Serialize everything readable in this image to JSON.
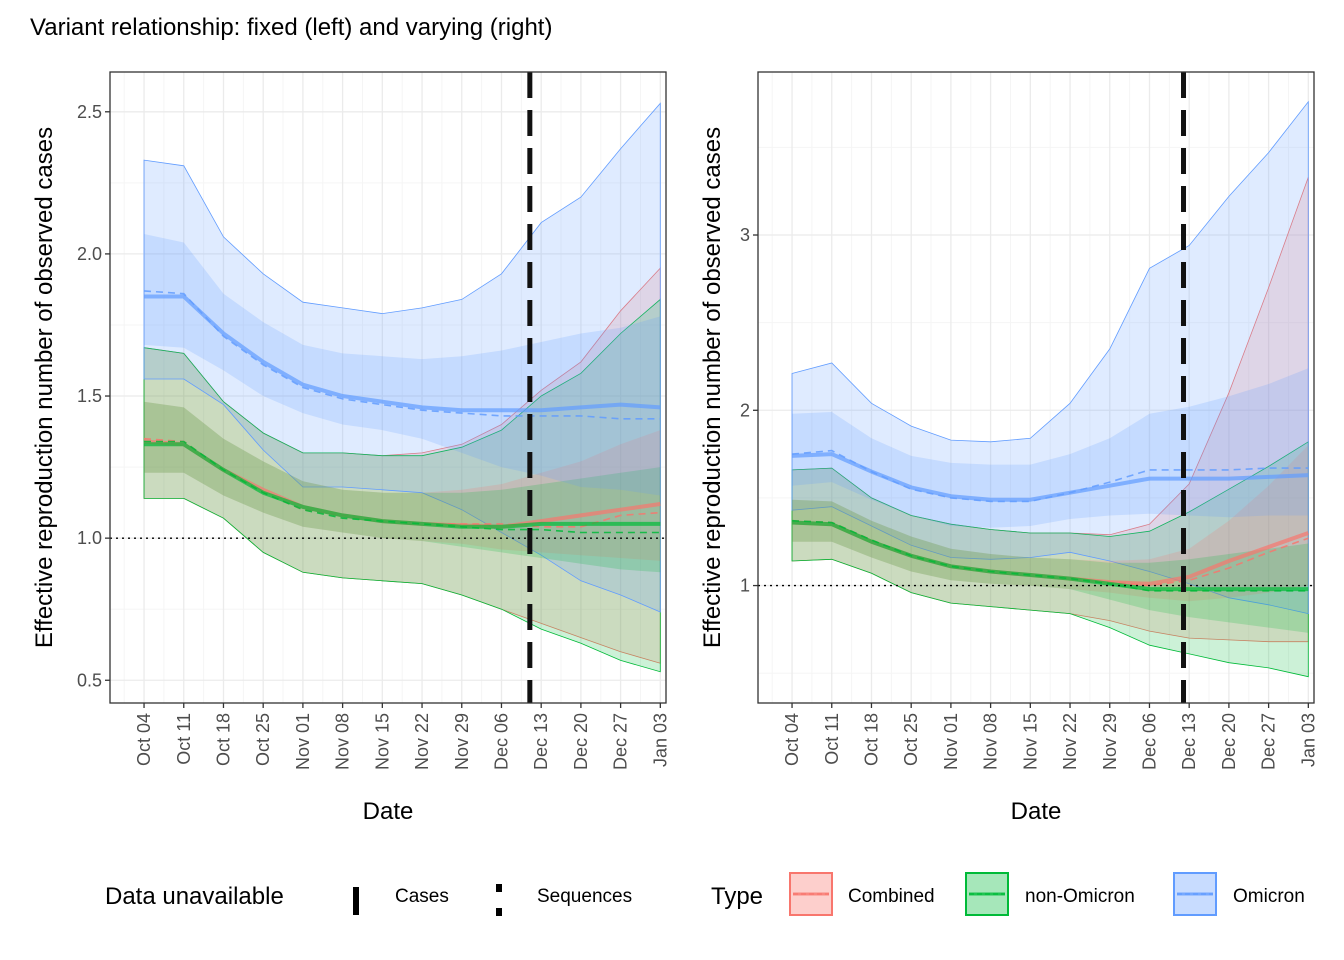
{
  "title": "Variant relationship: fixed (left) and varying (right)",
  "colors": {
    "combined": "#F8766D",
    "non_omicron": "#00BA38",
    "omicron": "#619CFF",
    "reference_line": "#000000",
    "grid_major": "#EBEBEB",
    "grid_minor": "#F5F5F5",
    "panel_border": "#333333"
  },
  "legend": {
    "unavailable_title": "Data unavailable",
    "unavailable_items": [
      "Cases",
      "Sequences"
    ],
    "type_title": "Type",
    "type_items": [
      "Combined",
      "non-Omicron",
      "Omicron"
    ]
  },
  "chart_data": [
    {
      "type": "line",
      "panel": "left",
      "xlabel": "Date",
      "ylabel": "Effective reproduction number of observed cases",
      "x_tick_labels": [
        "Oct 04",
        "Oct 11",
        "Oct 18",
        "Oct 25",
        "Nov 01",
        "Nov 08",
        "Nov 15",
        "Nov 22",
        "Nov 29",
        "Dec 06",
        "Dec 13",
        "Dec 20",
        "Dec 27",
        "Jan 03"
      ],
      "x_tick_dates": [
        "2021-10-04",
        "2021-10-11",
        "2021-10-18",
        "2021-10-25",
        "2021-11-01",
        "2021-11-08",
        "2021-11-15",
        "2021-11-22",
        "2021-11-29",
        "2021-12-06",
        "2021-12-13",
        "2021-12-20",
        "2021-12-27",
        "2022-01-03"
      ],
      "xlim": [
        "2021-09-28",
        "2022-01-04"
      ],
      "ylim": [
        0.42,
        2.64
      ],
      "y_ticks": [
        0.5,
        1.0,
        1.5,
        2.0,
        2.5
      ],
      "y_tick_labels": [
        "0.5",
        "1.0",
        "1.5",
        "2.0",
        "2.5"
      ],
      "reference_line_y": 1.0,
      "cases_unavailable_date": "2021-12-11",
      "grid": true,
      "dates": [
        "2021-10-04",
        "2021-10-11",
        "2021-10-18",
        "2021-10-25",
        "2021-11-01",
        "2021-11-08",
        "2021-11-15",
        "2021-11-22",
        "2021-11-29",
        "2021-12-06",
        "2021-12-13",
        "2021-12-20",
        "2021-12-27",
        "2022-01-03"
      ],
      "series": [
        {
          "name": "Combined",
          "median": [
            1.34,
            1.33,
            1.24,
            1.17,
            1.11,
            1.08,
            1.06,
            1.05,
            1.045,
            1.04,
            1.06,
            1.08,
            1.1,
            1.12
          ],
          "dashed": [
            1.35,
            1.34,
            1.24,
            1.16,
            1.1,
            1.08,
            1.06,
            1.05,
            1.05,
            1.05,
            1.04,
            1.04,
            1.08,
            1.09
          ],
          "lo90": [
            1.14,
            1.14,
            1.07,
            0.95,
            0.88,
            0.86,
            0.85,
            0.84,
            0.8,
            0.75,
            0.7,
            0.65,
            0.6,
            0.56
          ],
          "hi90": [
            1.67,
            1.65,
            1.48,
            1.37,
            1.3,
            1.3,
            1.29,
            1.3,
            1.33,
            1.4,
            1.52,
            1.62,
            1.8,
            1.95
          ],
          "lo50": [
            1.23,
            1.23,
            1.15,
            1.09,
            1.04,
            1.02,
            1.0,
            0.99,
            0.98,
            0.96,
            0.95,
            0.94,
            0.93,
            0.92
          ],
          "hi50": [
            1.48,
            1.46,
            1.35,
            1.27,
            1.2,
            1.17,
            1.16,
            1.16,
            1.17,
            1.19,
            1.23,
            1.27,
            1.33,
            1.38
          ]
        },
        {
          "name": "non-Omicron",
          "median": [
            1.33,
            1.33,
            1.24,
            1.16,
            1.11,
            1.08,
            1.06,
            1.05,
            1.04,
            1.04,
            1.05,
            1.05,
            1.05,
            1.05
          ],
          "dashed": [
            1.34,
            1.34,
            1.24,
            1.16,
            1.1,
            1.07,
            1.06,
            1.05,
            1.04,
            1.03,
            1.03,
            1.02,
            1.02,
            1.02
          ],
          "lo90": [
            1.14,
            1.14,
            1.07,
            0.95,
            0.88,
            0.86,
            0.85,
            0.84,
            0.8,
            0.75,
            0.68,
            0.63,
            0.57,
            0.53
          ],
          "hi90": [
            1.67,
            1.65,
            1.48,
            1.37,
            1.3,
            1.3,
            1.29,
            1.29,
            1.32,
            1.38,
            1.5,
            1.58,
            1.72,
            1.84
          ],
          "lo50": [
            1.23,
            1.23,
            1.15,
            1.09,
            1.04,
            1.02,
            1.0,
            0.99,
            0.97,
            0.95,
            0.93,
            0.91,
            0.89,
            0.88
          ],
          "hi50": [
            1.48,
            1.46,
            1.35,
            1.27,
            1.2,
            1.17,
            1.16,
            1.16,
            1.16,
            1.17,
            1.19,
            1.21,
            1.23,
            1.25
          ]
        },
        {
          "name": "Omicron",
          "median": [
            1.85,
            1.85,
            1.72,
            1.62,
            1.54,
            1.5,
            1.48,
            1.46,
            1.45,
            1.45,
            1.45,
            1.46,
            1.47,
            1.46
          ],
          "dashed": [
            1.87,
            1.86,
            1.71,
            1.61,
            1.53,
            1.49,
            1.47,
            1.45,
            1.44,
            1.43,
            1.43,
            1.43,
            1.42,
            1.42
          ],
          "lo90": [
            1.56,
            1.56,
            1.47,
            1.31,
            1.18,
            1.18,
            1.17,
            1.16,
            1.1,
            1.02,
            0.94,
            0.85,
            0.8,
            0.74
          ],
          "hi90": [
            2.33,
            2.31,
            2.06,
            1.93,
            1.83,
            1.81,
            1.79,
            1.81,
            1.84,
            1.93,
            2.11,
            2.2,
            2.37,
            2.53
          ],
          "lo50": [
            1.68,
            1.67,
            1.59,
            1.5,
            1.44,
            1.4,
            1.38,
            1.35,
            1.3,
            1.25,
            1.22,
            1.18,
            1.17,
            1.15
          ],
          "hi50": [
            2.07,
            2.04,
            1.86,
            1.76,
            1.68,
            1.65,
            1.64,
            1.63,
            1.64,
            1.66,
            1.69,
            1.72,
            1.74,
            1.78
          ]
        }
      ]
    },
    {
      "type": "line",
      "panel": "right",
      "xlabel": "Date",
      "ylabel": "Effective reproduction number of observed cases",
      "x_tick_labels": [
        "Oct 04",
        "Oct 11",
        "Oct 18",
        "Oct 25",
        "Nov 01",
        "Nov 08",
        "Nov 15",
        "Nov 22",
        "Nov 29",
        "Dec 06",
        "Dec 13",
        "Dec 20",
        "Dec 27",
        "Jan 03"
      ],
      "x_tick_dates": [
        "2021-10-04",
        "2021-10-11",
        "2021-10-18",
        "2021-10-25",
        "2021-11-01",
        "2021-11-08",
        "2021-11-15",
        "2021-11-22",
        "2021-11-29",
        "2021-12-06",
        "2021-12-13",
        "2021-12-20",
        "2021-12-27",
        "2022-01-03"
      ],
      "xlim": [
        "2021-09-28",
        "2022-01-04"
      ],
      "ylim": [
        0.33,
        3.93
      ],
      "y_ticks": [
        1,
        2,
        3
      ],
      "y_tick_labels": [
        "1",
        "2",
        "3"
      ],
      "reference_line_y": 1.0,
      "cases_unavailable_date": "2021-12-12",
      "grid": true,
      "dates": [
        "2021-10-04",
        "2021-10-11",
        "2021-10-18",
        "2021-10-25",
        "2021-11-01",
        "2021-11-08",
        "2021-11-15",
        "2021-11-22",
        "2021-11-29",
        "2021-12-06",
        "2021-12-13",
        "2021-12-20",
        "2021-12-27",
        "2022-01-03"
      ],
      "series": [
        {
          "name": "Combined",
          "median": [
            1.36,
            1.35,
            1.25,
            1.17,
            1.11,
            1.08,
            1.06,
            1.04,
            1.02,
            1.01,
            1.05,
            1.14,
            1.22,
            1.3
          ],
          "dashed": [
            1.37,
            1.36,
            1.26,
            1.17,
            1.11,
            1.08,
            1.06,
            1.04,
            1.02,
            1.0,
            1.03,
            1.1,
            1.19,
            1.27
          ],
          "lo90": [
            1.14,
            1.15,
            1.07,
            0.96,
            0.9,
            0.88,
            0.86,
            0.84,
            0.8,
            0.74,
            0.7,
            0.69,
            0.68,
            0.68
          ],
          "hi90": [
            1.66,
            1.67,
            1.5,
            1.4,
            1.35,
            1.32,
            1.3,
            1.3,
            1.29,
            1.35,
            1.58,
            2.1,
            2.7,
            3.33
          ],
          "lo50": [
            1.25,
            1.25,
            1.16,
            1.08,
            1.03,
            1.01,
            1.0,
            0.98,
            0.96,
            0.93,
            0.91,
            0.93,
            0.96,
            1.0
          ],
          "hi50": [
            1.49,
            1.48,
            1.37,
            1.28,
            1.21,
            1.18,
            1.16,
            1.15,
            1.14,
            1.15,
            1.21,
            1.37,
            1.57,
            1.8
          ]
        },
        {
          "name": "non-Omicron",
          "median": [
            1.36,
            1.35,
            1.25,
            1.17,
            1.11,
            1.08,
            1.06,
            1.04,
            1.01,
            0.98,
            0.98,
            0.98,
            0.98,
            0.98
          ],
          "dashed": [
            1.37,
            1.36,
            1.26,
            1.17,
            1.11,
            1.08,
            1.06,
            1.04,
            1.01,
            0.97,
            0.97,
            0.97,
            0.97,
            0.97
          ],
          "lo90": [
            1.14,
            1.15,
            1.07,
            0.96,
            0.9,
            0.88,
            0.86,
            0.84,
            0.76,
            0.66,
            0.61,
            0.56,
            0.53,
            0.48
          ],
          "hi90": [
            1.66,
            1.67,
            1.5,
            1.4,
            1.35,
            1.32,
            1.3,
            1.3,
            1.28,
            1.31,
            1.42,
            1.55,
            1.68,
            1.82
          ],
          "lo50": [
            1.25,
            1.25,
            1.16,
            1.08,
            1.03,
            1.01,
            1.0,
            0.98,
            0.92,
            0.86,
            0.82,
            0.79,
            0.76,
            0.73
          ],
          "hi50": [
            1.49,
            1.48,
            1.37,
            1.28,
            1.21,
            1.18,
            1.16,
            1.15,
            1.13,
            1.13,
            1.15,
            1.18,
            1.21,
            1.24
          ]
        },
        {
          "name": "Omicron",
          "median": [
            1.74,
            1.75,
            1.65,
            1.56,
            1.51,
            1.49,
            1.49,
            1.53,
            1.57,
            1.61,
            1.61,
            1.61,
            1.62,
            1.63
          ],
          "dashed": [
            1.75,
            1.77,
            1.65,
            1.55,
            1.5,
            1.48,
            1.48,
            1.53,
            1.59,
            1.66,
            1.66,
            1.66,
            1.67,
            1.67
          ],
          "lo90": [
            1.43,
            1.45,
            1.34,
            1.23,
            1.16,
            1.15,
            1.16,
            1.19,
            1.14,
            1.08,
            1.01,
            0.93,
            0.89,
            0.84
          ],
          "hi90": [
            2.21,
            2.27,
            2.04,
            1.91,
            1.83,
            1.82,
            1.84,
            2.04,
            2.35,
            2.81,
            2.94,
            3.22,
            3.47,
            3.76
          ],
          "lo50": [
            1.57,
            1.59,
            1.49,
            1.4,
            1.34,
            1.33,
            1.34,
            1.38,
            1.4,
            1.41,
            1.4,
            1.39,
            1.4,
            1.4
          ],
          "hi50": [
            1.98,
            1.99,
            1.84,
            1.74,
            1.7,
            1.69,
            1.69,
            1.75,
            1.84,
            1.98,
            2.02,
            2.08,
            2.15,
            2.24
          ]
        }
      ]
    }
  ]
}
